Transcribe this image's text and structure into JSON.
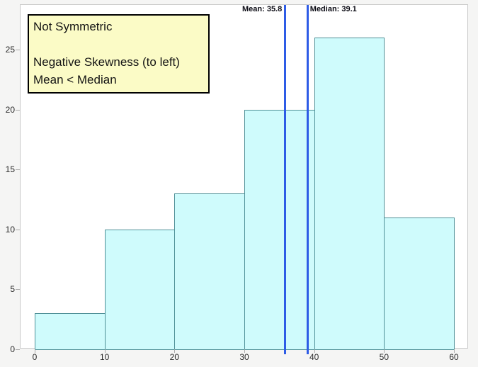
{
  "chart_data": {
    "type": "bar",
    "subtype": "histogram",
    "title": "",
    "xlabel": "",
    "ylabel": "",
    "bin_edges": [
      0,
      10,
      20,
      30,
      40,
      50,
      60
    ],
    "categories": [
      "0-10",
      "10-20",
      "20-30",
      "30-40",
      "40-50",
      "50-60"
    ],
    "values": [
      3,
      10,
      13,
      20,
      26,
      11
    ],
    "x_ticks": [
      0,
      10,
      20,
      30,
      40,
      50,
      60
    ],
    "y_ticks": [
      0,
      5,
      10,
      15,
      20,
      25
    ],
    "xlim": [
      0,
      60
    ],
    "ylim": [
      0,
      28.8
    ],
    "grid": false,
    "legend": "none",
    "mean": {
      "value": 35.8,
      "label": "Mean: 35.8"
    },
    "median": {
      "value": 39.1,
      "label": "Median: 39.1"
    },
    "annotation": {
      "lines": [
        "Not Symmetric",
        "",
        "Negative Skewness (to left)",
        "Mean < Median"
      ]
    },
    "colors": {
      "bar_fill": "#cffbfc",
      "bar_border": "#4f9097",
      "reference_line": "#2e5ce6",
      "annotation_bg": "#fbfbc6",
      "annotation_border": "#000000",
      "panel_bg": "#ffffff",
      "page_bg": "#f5f5f4",
      "axis": "#c9c9c9"
    }
  }
}
